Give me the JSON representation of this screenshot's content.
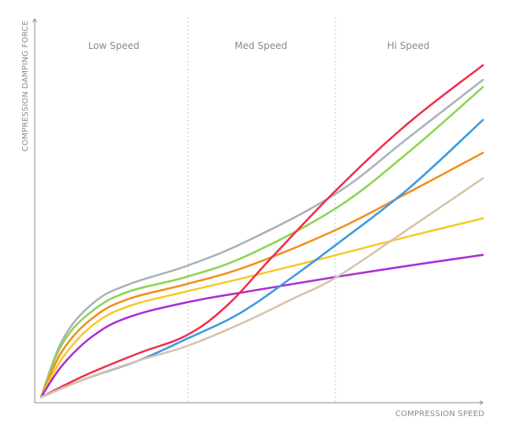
{
  "chart_data": {
    "type": "line",
    "title": "",
    "xlabel": "COMPRESSION SPEED",
    "ylabel": "COMPRESSION DAMPING FORCE",
    "xlim": [
      0,
      100
    ],
    "ylim": [
      0,
      100
    ],
    "grid": false,
    "ticks": false,
    "regions": [
      {
        "label": "Low Speed",
        "start": 0,
        "end": 33.3
      },
      {
        "label": "Med Speed",
        "start": 33.3,
        "end": 66.6
      },
      {
        "label": "Hi Speed",
        "start": 66.6,
        "end": 100
      }
    ],
    "series": [
      {
        "color": "#aab3ba",
        "points": [
          [
            0,
            0
          ],
          [
            5,
            16
          ],
          [
            12,
            26
          ],
          [
            20,
            31
          ],
          [
            33,
            36
          ],
          [
            47,
            43
          ],
          [
            67,
            56
          ],
          [
            83,
            71
          ],
          [
            100,
            87
          ]
        ]
      },
      {
        "color": "#8ed451",
        "points": [
          [
            0,
            0
          ],
          [
            5,
            15
          ],
          [
            12,
            24
          ],
          [
            20,
            29
          ],
          [
            33,
            33
          ],
          [
            47,
            39
          ],
          [
            67,
            52
          ],
          [
            83,
            67
          ],
          [
            100,
            85
          ]
        ]
      },
      {
        "color": "#f28f1a",
        "points": [
          [
            0,
            0
          ],
          [
            5,
            13
          ],
          [
            12,
            22
          ],
          [
            20,
            27
          ],
          [
            33,
            31
          ],
          [
            47,
            36
          ],
          [
            67,
            46
          ],
          [
            83,
            56
          ],
          [
            100,
            67
          ]
        ]
      },
      {
        "color": "#f7c92b",
        "points": [
          [
            0,
            0
          ],
          [
            5,
            11
          ],
          [
            12,
            20
          ],
          [
            20,
            25
          ],
          [
            33,
            29
          ],
          [
            47,
            33
          ],
          [
            67,
            39
          ],
          [
            83,
            44
          ],
          [
            100,
            49
          ]
        ]
      },
      {
        "color": "#a930d6",
        "points": [
          [
            0,
            0
          ],
          [
            5,
            9
          ],
          [
            12,
            17
          ],
          [
            20,
            22
          ],
          [
            33,
            26
          ],
          [
            47,
            29
          ],
          [
            67,
            33
          ],
          [
            83,
            36
          ],
          [
            100,
            39
          ]
        ]
      },
      {
        "color": "#f0304d",
        "points": [
          [
            0,
            0
          ],
          [
            10,
            6
          ],
          [
            22,
            12
          ],
          [
            33,
            17
          ],
          [
            42,
            25
          ],
          [
            52,
            38
          ],
          [
            67,
            57
          ],
          [
            83,
            75
          ],
          [
            100,
            91
          ]
        ]
      },
      {
        "color": "#3d9be0",
        "points": [
          [
            0,
            0
          ],
          [
            10,
            5
          ],
          [
            22,
            10
          ],
          [
            33,
            16
          ],
          [
            45,
            23
          ],
          [
            57,
            33
          ],
          [
            67,
            42
          ],
          [
            83,
            57
          ],
          [
            100,
            76
          ]
        ]
      },
      {
        "color": "#d6c3ab",
        "points": [
          [
            0,
            0
          ],
          [
            10,
            5
          ],
          [
            22,
            10
          ],
          [
            33,
            14
          ],
          [
            45,
            20
          ],
          [
            57,
            27
          ],
          [
            67,
            33
          ],
          [
            83,
            46
          ],
          [
            100,
            60
          ]
        ]
      }
    ]
  }
}
